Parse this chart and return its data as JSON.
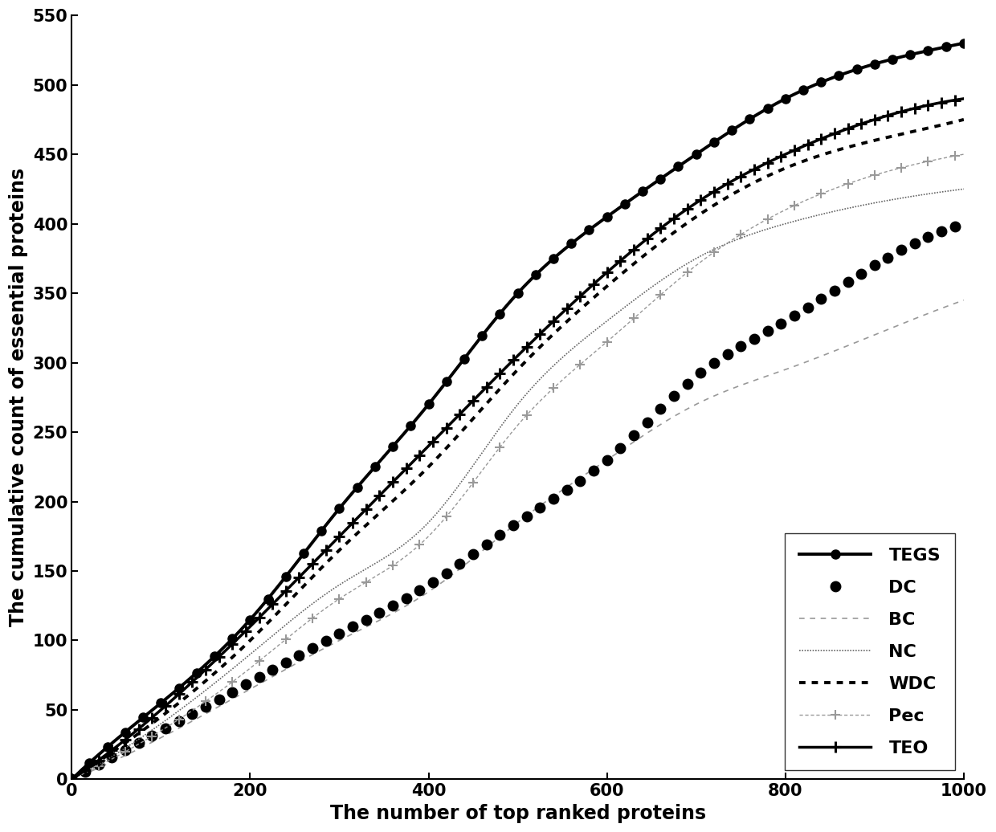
{
  "xlabel": "The number of top ranked proteins",
  "ylabel": "The cumulative count of essential proteins",
  "xlim": [
    0,
    1000
  ],
  "ylim": [
    0,
    550
  ],
  "xticks": [
    0,
    200,
    400,
    600,
    800,
    1000
  ],
  "yticks": [
    0,
    50,
    100,
    150,
    200,
    250,
    300,
    350,
    400,
    450,
    500,
    550
  ],
  "legend_labels": [
    "TEGS",
    "DC",
    "BC",
    "NC",
    "WDC",
    "Pec",
    "TEO"
  ],
  "figsize": [
    12.4,
    10.36
  ],
  "dpi": 100,
  "background": "#ffffff"
}
